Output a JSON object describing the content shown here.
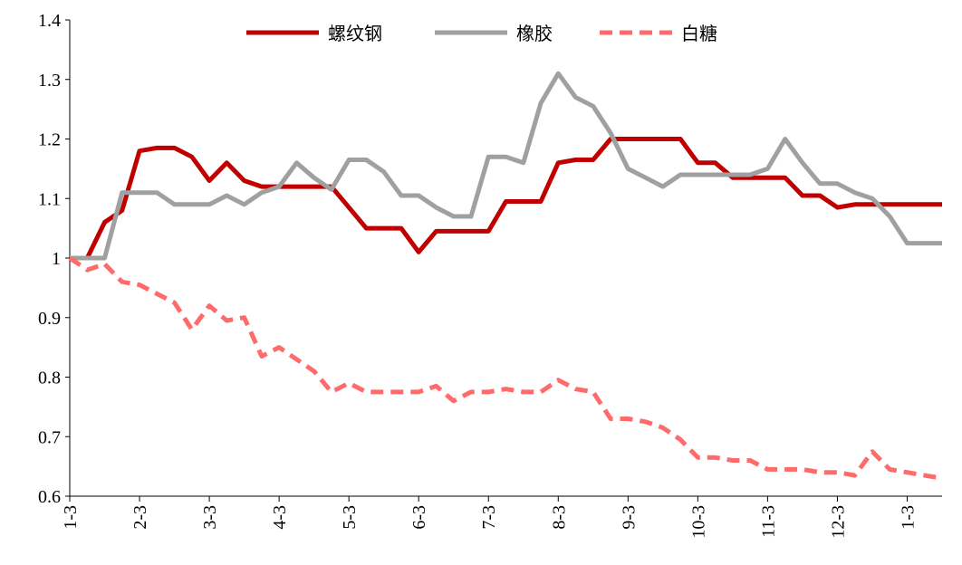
{
  "chart_data": {
    "type": "line",
    "categories": [
      "1-3",
      null,
      null,
      null,
      "2-3",
      null,
      null,
      null,
      "3-3",
      null,
      null,
      null,
      "4-3",
      null,
      null,
      null,
      "5-3",
      null,
      null,
      null,
      "6-3",
      null,
      null,
      null,
      "7-3",
      null,
      null,
      null,
      "8-3",
      null,
      null,
      null,
      "9-3",
      null,
      null,
      null,
      "10-3",
      null,
      null,
      null,
      "11-3",
      null,
      null,
      null,
      "12-3",
      null,
      null,
      null,
      "1-3",
      null,
      null
    ],
    "series": [
      {
        "name": "螺纹钢",
        "color": "#c00000",
        "dashed": false,
        "values": [
          1.0,
          1.0,
          1.06,
          1.08,
          1.18,
          1.185,
          1.185,
          1.17,
          1.13,
          1.16,
          1.13,
          1.12,
          1.12,
          1.12,
          1.12,
          1.12,
          1.085,
          1.05,
          1.05,
          1.05,
          1.01,
          1.045,
          1.045,
          1.045,
          1.045,
          1.095,
          1.095,
          1.095,
          1.16,
          1.165,
          1.165,
          1.2,
          1.2,
          1.2,
          1.2,
          1.2,
          1.16,
          1.16,
          1.135,
          1.135,
          1.135,
          1.135,
          1.105,
          1.105,
          1.085,
          1.09,
          1.09,
          1.09,
          1.09,
          1.09,
          1.09
        ]
      },
      {
        "name": "橡胶",
        "color": "#a0a0a0",
        "dashed": false,
        "values": [
          1.0,
          1.0,
          1.0,
          1.11,
          1.11,
          1.11,
          1.09,
          1.09,
          1.09,
          1.105,
          1.09,
          1.11,
          1.12,
          1.16,
          1.135,
          1.115,
          1.165,
          1.165,
          1.145,
          1.105,
          1.105,
          1.085,
          1.07,
          1.07,
          1.17,
          1.17,
          1.16,
          1.26,
          1.31,
          1.27,
          1.255,
          1.21,
          1.15,
          1.135,
          1.12,
          1.14,
          1.14,
          1.14,
          1.14,
          1.14,
          1.15,
          1.2,
          1.16,
          1.125,
          1.125,
          1.11,
          1.1,
          1.07,
          1.025,
          1.025,
          1.025
        ]
      },
      {
        "name": "白糖",
        "color": "#ff6b6b",
        "dashed": true,
        "values": [
          1.0,
          0.98,
          0.99,
          0.96,
          0.955,
          0.94,
          0.925,
          0.88,
          0.92,
          0.895,
          0.9,
          0.835,
          0.85,
          0.83,
          0.81,
          0.775,
          0.79,
          0.775,
          0.775,
          0.775,
          0.775,
          0.785,
          0.76,
          0.775,
          0.775,
          0.78,
          0.775,
          0.775,
          0.795,
          0.78,
          0.775,
          0.73,
          0.73,
          0.725,
          0.715,
          0.695,
          0.665,
          0.665,
          0.66,
          0.66,
          0.645,
          0.645,
          0.645,
          0.64,
          0.64,
          0.635,
          0.675,
          0.645,
          0.64,
          0.635,
          0.63
        ]
      }
    ],
    "ylim": [
      0.6,
      1.4
    ],
    "yticks": [
      0.6,
      0.7,
      0.8,
      0.9,
      1,
      1.1,
      1.2,
      1.3,
      1.4
    ],
    "grid": false,
    "legend": "top"
  }
}
